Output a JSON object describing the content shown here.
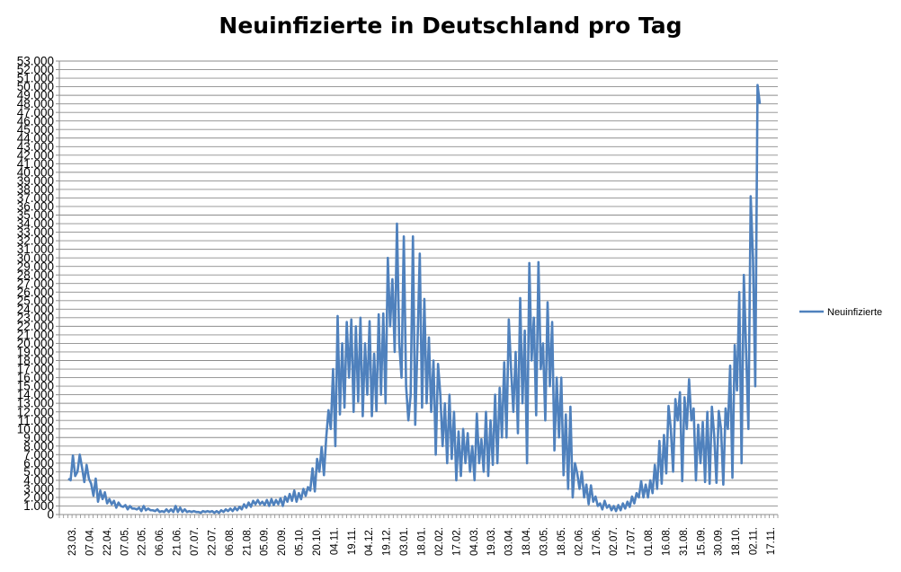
{
  "chart_data": {
    "type": "line",
    "title": "Neuinfizierte in Deutschland pro Tag",
    "xlabel": "",
    "ylabel": "",
    "ylim": [
      0,
      53000
    ],
    "y_step": 1000,
    "y_tick_labels": [
      "0",
      "1.000",
      "2.000",
      "3.000",
      "4.000",
      "5.000",
      "6.000",
      "7.000",
      "8.000",
      "9.000",
      "10.000",
      "11.000",
      "12.000",
      "13.000",
      "14.000",
      "15.000",
      "16.000",
      "17.000",
      "18.000",
      "19.000",
      "20.000",
      "21.000",
      "22.000",
      "23.000",
      "24.000",
      "25.000",
      "26.000",
      "27.000",
      "28.000",
      "29.000",
      "30.000",
      "31.000",
      "32.000",
      "33.000",
      "34.000",
      "35.000",
      "36.000",
      "37.000",
      "38.000",
      "39.000",
      "40.000",
      "41.000",
      "42.000",
      "43.000",
      "44.000",
      "45.000",
      "46.000",
      "47.000",
      "48.000",
      "49.000",
      "50.000",
      "51.000",
      "52.000",
      "53.000"
    ],
    "grid": true,
    "legend_position": "right",
    "series_color": "#4f81bd",
    "x_tick_labels": [
      "23.03.",
      "07.04.",
      "22.04.",
      "07.05.",
      "22.05.",
      "06.06.",
      "21.06.",
      "07.07.",
      "22.07.",
      "06.08.",
      "21.08.",
      "05.09.",
      "20.09.",
      "05.10.",
      "20.10.",
      "04.11.",
      "19.11.",
      "04.12.",
      "19.12.",
      "03.01.",
      "18.01.",
      "02.02.",
      "17.02.",
      "04.03.",
      "19.03.",
      "03.04.",
      "18.04.",
      "03.05.",
      "18.05.",
      "02.06.",
      "17.06.",
      "02.07.",
      "17.07.",
      "01.08.",
      "16.08.",
      "31.08.",
      "15.09.",
      "30.09.",
      "18.10.",
      "02.11.",
      "17.11."
    ],
    "series": [
      {
        "name": "Neuinfizierte",
        "values": [
          4200,
          4000,
          6900,
          4500,
          5000,
          7000,
          5500,
          3800,
          5800,
          4200,
          3600,
          2200,
          4200,
          1500,
          2800,
          1800,
          2600,
          1300,
          1800,
          1200,
          1600,
          800,
          1400,
          1000,
          900,
          1100,
          600,
          1000,
          700,
          700,
          600,
          800,
          400,
          1000,
          500,
          700,
          500,
          500,
          400,
          600,
          300,
          400,
          300,
          600,
          300,
          600,
          300,
          1000,
          300,
          800,
          300,
          600,
          300,
          400,
          300,
          400,
          300,
          300,
          200,
          400,
          300,
          400,
          300,
          400,
          200,
          400,
          200,
          500,
          300,
          600,
          400,
          700,
          400,
          800,
          500,
          900,
          600,
          1200,
          800,
          1400,
          900,
          1600,
          1200,
          1700,
          1200,
          1500,
          1100,
          1700,
          1000,
          1800,
          1100,
          1700,
          1200,
          1900,
          1000,
          2100,
          1500,
          2400,
          1600,
          2800,
          1500,
          2500,
          1800,
          3000,
          2200,
          3200,
          2800,
          5400,
          2700,
          6500,
          5000,
          7900,
          4600,
          9000,
          12200,
          10000,
          17000,
          8000,
          23200,
          11700,
          20000,
          12500,
          22500,
          16000,
          22800,
          12000,
          22000,
          13200,
          23000,
          11500,
          20000,
          14000,
          22600,
          11500,
          18800,
          12100,
          23400,
          14000,
          23500,
          13000,
          30000,
          22000,
          27500,
          19000,
          34000,
          20000,
          16000,
          32500,
          15000,
          11000,
          14000,
          32500,
          10500,
          20000,
          30500,
          12500,
          25200,
          13000,
          20700,
          12000,
          18000,
          7000,
          17600,
          14000,
          8000,
          13000,
          6000,
          14000,
          6500,
          12000,
          4000,
          9700,
          4500,
          10000,
          6000,
          9500,
          5000,
          8000,
          4000,
          11800,
          6000,
          8800,
          5000,
          12000,
          4500,
          11000,
          5800,
          14000,
          6000,
          14800,
          9000,
          17800,
          9000,
          22800,
          17000,
          12000,
          19000,
          9500,
          25300,
          13000,
          21500,
          6000,
          29400,
          18000,
          23000,
          11600,
          29500,
          17000,
          20000,
          11000,
          24800,
          15000,
          22500,
          7500,
          16000,
          9000,
          16000,
          4600,
          11700,
          3000,
          12600,
          2000,
          6000,
          4800,
          3000,
          5000,
          2000,
          3500,
          1200,
          3400,
          1500,
          2100,
          1000,
          1300,
          600,
          1600,
          800,
          1100,
          500,
          1000,
          400,
          1100,
          500,
          1300,
          700,
          1500,
          900,
          2100,
          1300,
          2500,
          2000,
          3900,
          2000,
          3500,
          2000,
          4000,
          2500,
          5800,
          3000,
          8600,
          3600,
          9300,
          4800,
          12700,
          10000,
          5000,
          13500,
          11000,
          14300,
          3900,
          13700,
          10000,
          15800,
          11000,
          12400,
          4000,
          10500,
          6000,
          10800,
          3800,
          12000,
          3600,
          12600,
          9300,
          3700,
          12100,
          10000,
          3500,
          12400,
          10000,
          17400,
          4300,
          19800,
          14500,
          26000,
          6000,
          28000,
          19000,
          10000,
          37200,
          30000,
          15000,
          50200,
          48000
        ]
      }
    ]
  }
}
